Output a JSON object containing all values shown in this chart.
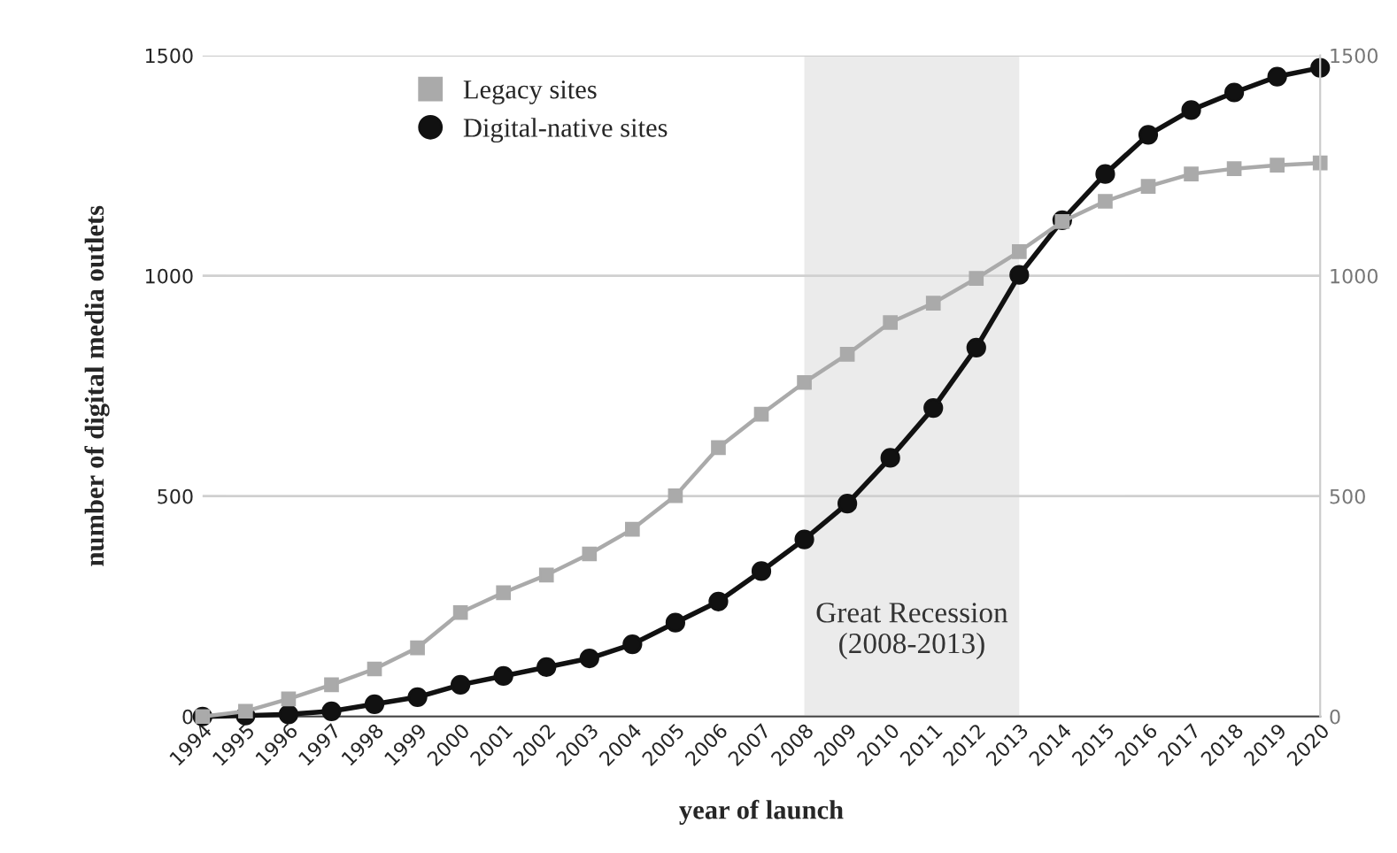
{
  "chart_data": {
    "type": "line",
    "xlabel": "year of launch",
    "ylabel": "number of digital media outlets",
    "x": [
      1994,
      1995,
      1996,
      1997,
      1998,
      1999,
      2000,
      2001,
      2002,
      2003,
      2004,
      2005,
      2006,
      2007,
      2008,
      2009,
      2010,
      2011,
      2012,
      2013,
      2014,
      2015,
      2016,
      2017,
      2018,
      2019,
      2020
    ],
    "xlim": [
      1994,
      2020
    ],
    "xticks": [
      1994,
      1995,
      1996,
      1997,
      1998,
      1999,
      2000,
      2001,
      2002,
      2003,
      2004,
      2005,
      2006,
      2007,
      2008,
      2009,
      2010,
      2011,
      2012,
      2013,
      2014,
      2015,
      2016,
      2017,
      2018,
      2019,
      2020
    ],
    "ylim": [
      0,
      1500
    ],
    "yticks": [
      0,
      500,
      1000,
      1500
    ],
    "y2lim": [
      0,
      1500
    ],
    "y2ticks": [
      0,
      500,
      1000,
      1500
    ],
    "series": [
      {
        "name": "Legacy sites",
        "color": "#aaaaaa",
        "marker": "square",
        "values": [
          0,
          12,
          40,
          72,
          108,
          156,
          236,
          281,
          321,
          369,
          425,
          501,
          610,
          686,
          758,
          822,
          894,
          938,
          994,
          1055,
          1123,
          1169,
          1203,
          1231,
          1243,
          1251,
          1256
        ]
      },
      {
        "name": "Digital-native sites",
        "color": "#111111",
        "marker": "circle",
        "values": [
          0,
          2,
          5,
          12,
          28,
          44,
          72,
          92,
          112,
          132,
          164,
          213,
          261,
          330,
          402,
          483,
          587,
          700,
          837,
          1002,
          1126,
          1231,
          1320,
          1376,
          1416,
          1452,
          1472
        ]
      }
    ],
    "bands": [
      {
        "axis": "x",
        "from": 2008,
        "to": 2013,
        "label": "Great Recession\n(2008-2013)",
        "color": "#ebebeb"
      }
    ],
    "grid": "y",
    "legend": "top left",
    "line_style": "solid"
  }
}
